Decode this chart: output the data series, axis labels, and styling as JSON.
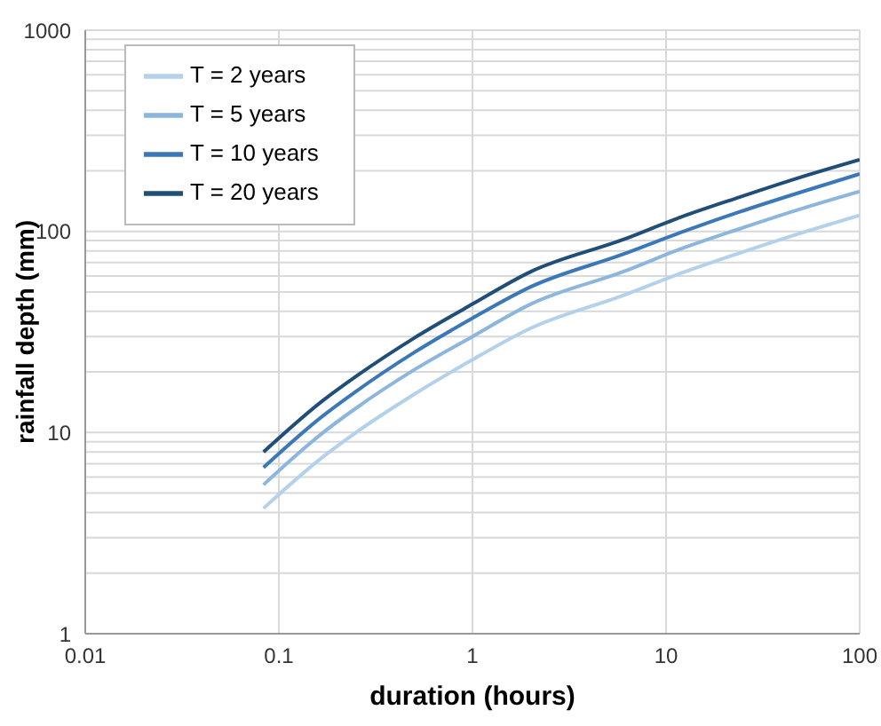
{
  "chart_data": {
    "type": "line",
    "xlabel": "duration (hours)",
    "ylabel": "rainfall depth (mm)",
    "log": "xy",
    "grid": true,
    "legend": "top left",
    "marker": "none",
    "line_style": "solid",
    "x": [
      0.0833,
      0.167,
      0.25,
      0.5,
      1,
      2,
      6,
      12,
      24,
      48,
      100
    ],
    "series": [
      {
        "name": "T = 2 years",
        "color": "#b4d1ec",
        "values": [
          4.2,
          7.5,
          10,
          15.5,
          23,
          33,
          48,
          62,
          78,
          97,
          120
        ]
      },
      {
        "name": "T = 5 years",
        "color": "#8db6de",
        "values": [
          5.5,
          9.9,
          13.2,
          20.5,
          30,
          43.5,
          63,
          82,
          103,
          128,
          158
        ]
      },
      {
        "name": "T = 10 years",
        "color": "#3a78b8",
        "values": [
          6.7,
          12,
          16,
          25,
          37,
          53,
          77,
          99,
          125,
          155,
          193
        ]
      },
      {
        "name": "T = 20 years",
        "color": "#1f4e79",
        "values": [
          8,
          14.3,
          19,
          29.5,
          43.5,
          63,
          91,
          118,
          148,
          184,
          227
        ]
      }
    ],
    "xlim": [
      0.01,
      100
    ],
    "xticks": [
      0.01,
      0.1,
      1,
      10,
      100
    ],
    "ylim": [
      1,
      1000
    ],
    "yticks": [
      1,
      {
        "value": 2,
        "label": null
      },
      {
        "value": 3,
        "label": null
      },
      {
        "value": 4,
        "label": null
      },
      {
        "value": 5,
        "label": null
      },
      {
        "value": 6,
        "label": null
      },
      {
        "value": 7,
        "label": null
      },
      {
        "value": 8,
        "label": null
      },
      {
        "value": 9,
        "label": null
      },
      10,
      {
        "value": 20,
        "label": null
      },
      {
        "value": 30,
        "label": null
      },
      {
        "value": 40,
        "label": null
      },
      {
        "value": 50,
        "label": null
      },
      {
        "value": 60,
        "label": null
      },
      {
        "value": 70,
        "label": null
      },
      {
        "value": 80,
        "label": null
      },
      {
        "value": 90,
        "label": null
      },
      100,
      {
        "value": 200,
        "label": null
      },
      {
        "value": 300,
        "label": null
      },
      {
        "value": 400,
        "label": null
      },
      {
        "value": 500,
        "label": null
      },
      {
        "value": 600,
        "label": null
      },
      {
        "value": 700,
        "label": null
      },
      {
        "value": 800,
        "label": null
      },
      {
        "value": 900,
        "label": null
      },
      1000
    ]
  }
}
